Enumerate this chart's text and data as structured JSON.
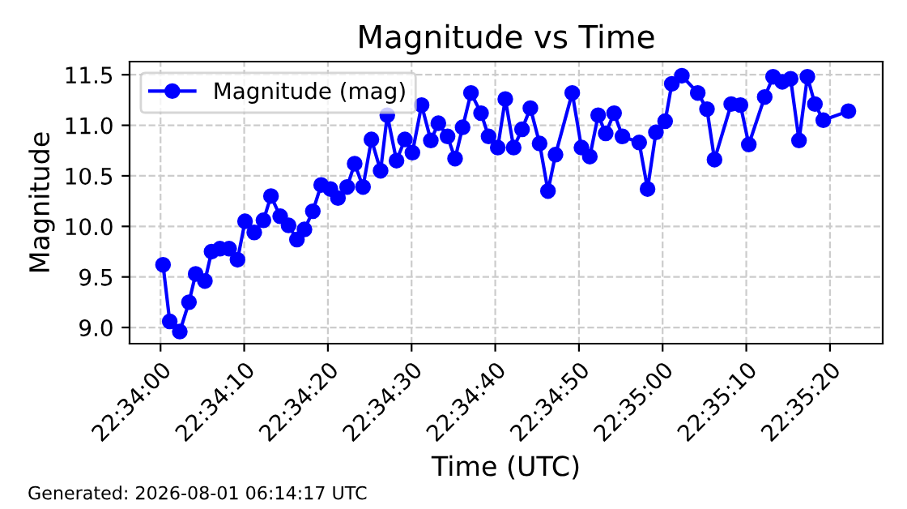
{
  "chart_data": {
    "type": "line",
    "title": "Magnitude vs Time",
    "xlabel": "Time (UTC)",
    "ylabel": "Magnitude",
    "annotations": [
      "Generated: 2026-08-01 06:14:17 UTC"
    ],
    "series": [
      {
        "name": "Magnitude (mag)",
        "color": "#0000ff",
        "x": [
          22.56675,
          22.566972,
          22.567306,
          22.567611,
          22.567833,
          22.568139,
          22.568361,
          22.568639,
          22.568944,
          22.569222,
          22.569472,
          22.569778,
          22.570083,
          22.570333,
          22.570639,
          22.570917,
          22.571194,
          22.571444,
          22.571722,
          22.572,
          22.572306,
          22.572556,
          22.572861,
          22.573111,
          22.573389,
          22.573667,
          22.573972,
          22.574194,
          22.5745,
          22.574778,
          22.575028,
          22.575333,
          22.575639,
          22.575889,
          22.576194,
          22.576444,
          22.576694,
          22.576972,
          22.577306,
          22.577556,
          22.577861,
          22.578111,
          22.578389,
          22.578667,
          22.578944,
          22.57925,
          22.579528,
          22.579778,
          22.580333,
          22.580639,
          22.580917,
          22.581194,
          22.581444,
          22.581722,
          22.582,
          22.582556,
          22.582833,
          22.583111,
          22.583417,
          22.583639,
          22.583972,
          22.5845,
          22.584806,
          22.585056,
          22.585611,
          22.585917,
          22.586194,
          22.586722,
          22.587,
          22.587306,
          22.587583,
          22.587861,
          22.588139,
          22.588389,
          22.588667,
          22.5895
        ],
        "values": [
          9.62,
          9.06,
          8.96,
          9.25,
          9.53,
          9.46,
          9.75,
          9.78,
          9.78,
          9.67,
          10.05,
          9.94,
          10.06,
          10.3,
          10.1,
          10.01,
          9.87,
          9.97,
          10.15,
          10.41,
          10.37,
          10.28,
          10.39,
          10.62,
          10.39,
          10.86,
          10.55,
          11.1,
          10.65,
          10.86,
          10.73,
          11.2,
          10.85,
          11.02,
          10.89,
          10.67,
          10.98,
          11.32,
          11.12,
          10.89,
          10.78,
          11.26,
          10.78,
          10.96,
          11.17,
          10.82,
          10.35,
          10.71,
          11.32,
          10.78,
          10.69,
          11.1,
          10.92,
          11.12,
          10.89,
          10.83,
          10.37,
          10.93,
          11.04,
          11.41,
          11.49,
          11.32,
          11.16,
          10.66,
          11.21,
          11.2,
          10.81,
          11.28,
          11.48,
          11.43,
          11.46,
          10.85,
          11.48,
          11.21,
          11.05,
          11.14
        ]
      }
    ],
    "xlim": [
      22.565639,
      22.590639
    ],
    "xticks": [
      {
        "value": 22.566667,
        "label": "22:34:00"
      },
      {
        "value": 22.569444,
        "label": "22:34:10"
      },
      {
        "value": 22.572222,
        "label": "22:34:20"
      },
      {
        "value": 22.575,
        "label": "22:34:30"
      },
      {
        "value": 22.577778,
        "label": "22:34:40"
      },
      {
        "value": 22.580556,
        "label": "22:34:50"
      },
      {
        "value": 22.583333,
        "label": "22:35:00"
      },
      {
        "value": 22.586111,
        "label": "22:35:10"
      },
      {
        "value": 22.588889,
        "label": "22:35:20"
      }
    ],
    "ylim": [
      8.84,
      11.63
    ],
    "yticks": [
      {
        "value": 9,
        "label": "9.0"
      },
      {
        "value": 9.5,
        "label": "9.5"
      },
      {
        "value": 10,
        "label": "10.0"
      },
      {
        "value": 10.5,
        "label": "10.5"
      },
      {
        "value": 11,
        "label": "11.0"
      },
      {
        "value": 11.5,
        "label": "11.5"
      }
    ],
    "grid": true,
    "legend": "top left",
    "marker": "circle",
    "line_style": "solid"
  }
}
